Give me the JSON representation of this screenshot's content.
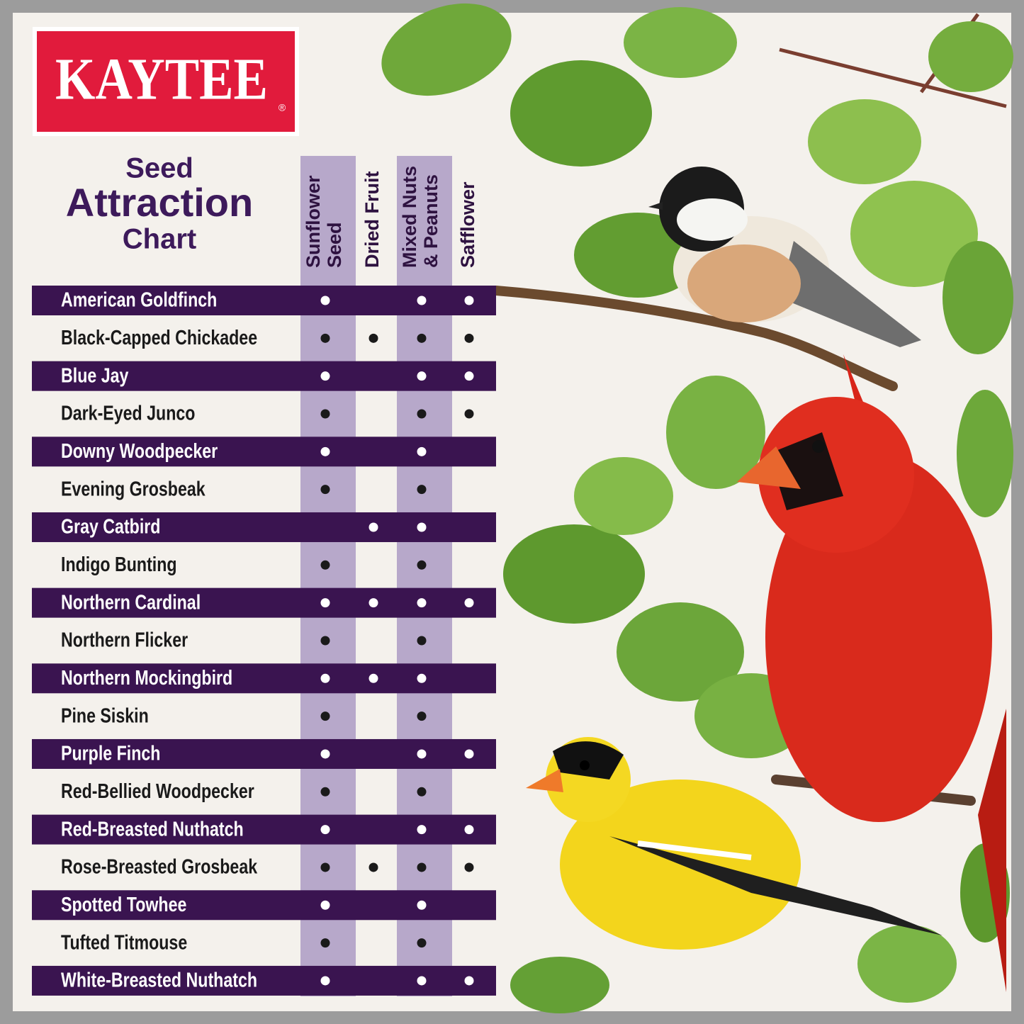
{
  "brand": {
    "name": "KAYTEE",
    "mark": "®"
  },
  "title": {
    "lines": [
      "Seed",
      "Attraction",
      "Chart"
    ]
  },
  "table": {
    "columns": [
      [
        "Sunflower",
        "Seed"
      ],
      [
        "Dried Fruit"
      ],
      [
        "Mixed Nuts",
        "& Peanuts"
      ],
      [
        "Safflower"
      ]
    ],
    "rows": [
      {
        "name": "American Goldfinch",
        "cells": [
          true,
          false,
          true,
          true
        ]
      },
      {
        "name": "Black-Capped Chickadee",
        "cells": [
          true,
          true,
          true,
          true
        ]
      },
      {
        "name": "Blue Jay",
        "cells": [
          true,
          false,
          true,
          true
        ]
      },
      {
        "name": "Dark-Eyed Junco",
        "cells": [
          true,
          false,
          true,
          true
        ]
      },
      {
        "name": "Downy Woodpecker",
        "cells": [
          true,
          false,
          true,
          false
        ]
      },
      {
        "name": "Evening Grosbeak",
        "cells": [
          true,
          false,
          true,
          false
        ]
      },
      {
        "name": "Gray Catbird",
        "cells": [
          false,
          true,
          true,
          false
        ]
      },
      {
        "name": "Indigo Bunting",
        "cells": [
          true,
          false,
          true,
          false
        ]
      },
      {
        "name": "Northern Cardinal",
        "cells": [
          true,
          true,
          true,
          true
        ]
      },
      {
        "name": "Northern Flicker",
        "cells": [
          true,
          false,
          true,
          false
        ]
      },
      {
        "name": "Northern Mockingbird",
        "cells": [
          true,
          true,
          true,
          false
        ]
      },
      {
        "name": "Pine Siskin",
        "cells": [
          true,
          false,
          true,
          false
        ]
      },
      {
        "name": "Purple Finch",
        "cells": [
          true,
          false,
          true,
          true
        ]
      },
      {
        "name": "Red-Bellied Woodpecker",
        "cells": [
          true,
          false,
          true,
          false
        ]
      },
      {
        "name": "Red-Breasted Nuthatch",
        "cells": [
          true,
          false,
          true,
          true
        ]
      },
      {
        "name": "Rose-Breasted Grosbeak",
        "cells": [
          true,
          true,
          true,
          true
        ]
      },
      {
        "name": "Spotted Towhee",
        "cells": [
          true,
          false,
          true,
          false
        ]
      },
      {
        "name": "Tufted Titmouse",
        "cells": [
          true,
          false,
          true,
          false
        ]
      },
      {
        "name": "White-Breasted Nuthatch",
        "cells": [
          true,
          false,
          true,
          true
        ]
      }
    ]
  }
}
